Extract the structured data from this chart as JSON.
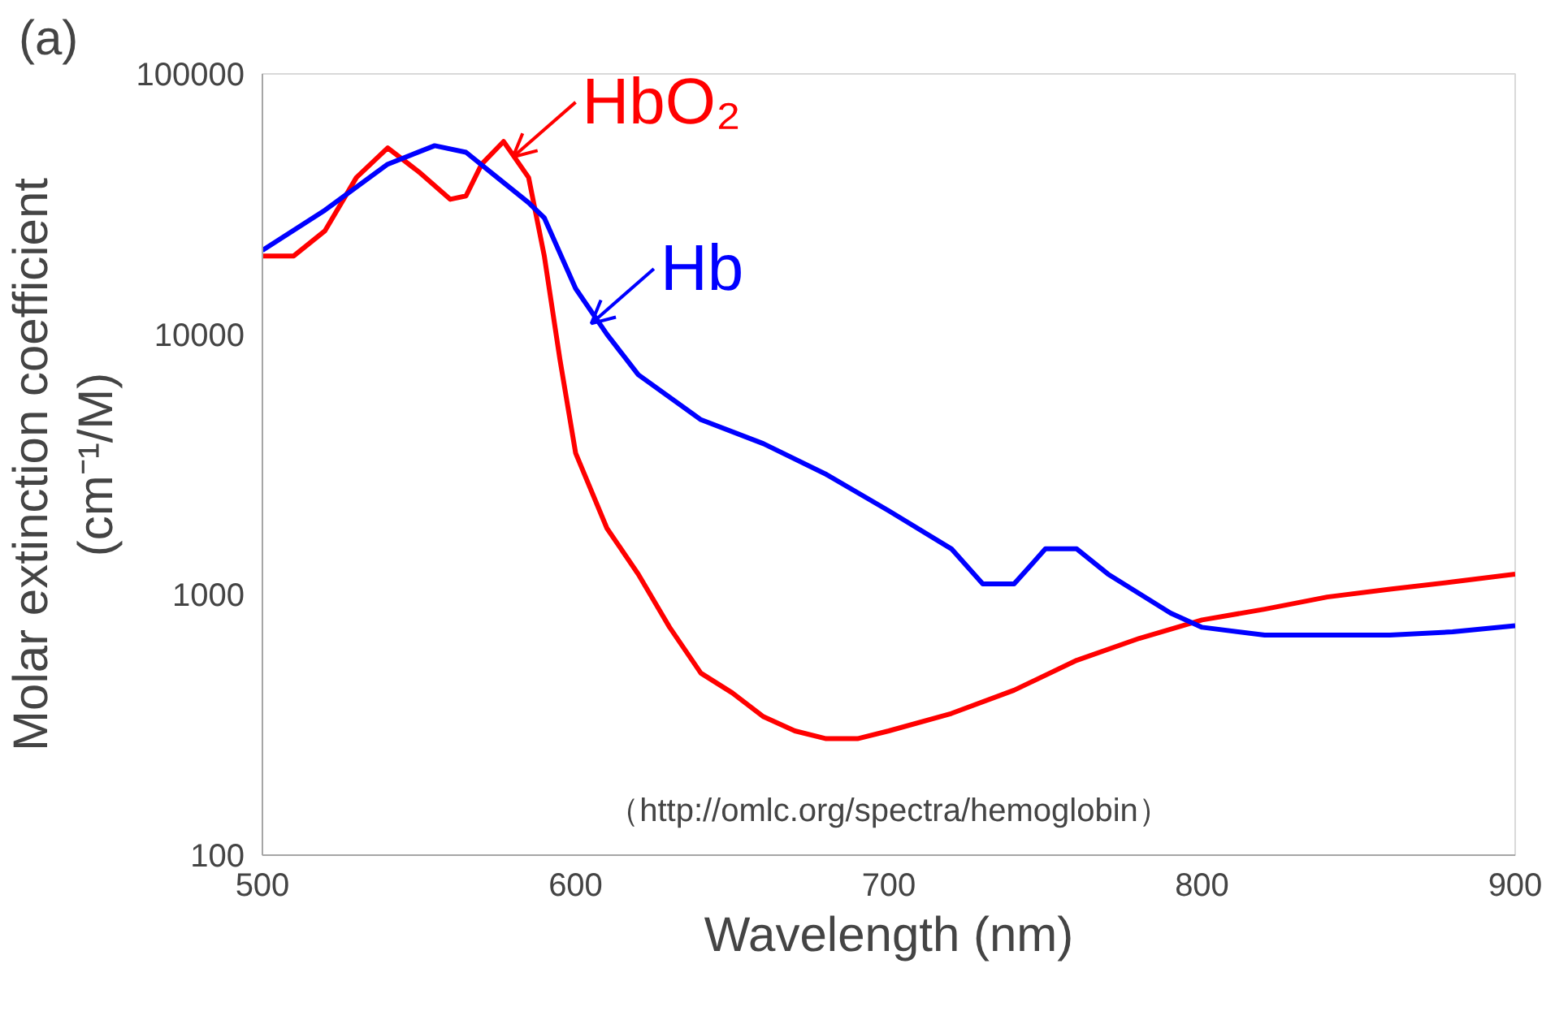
{
  "chart_data": {
    "type": "line",
    "title": "(a)",
    "xlabel": "Wavelength (nm)",
    "ylabel": "Molar extinction coefficient\n(cm⁻¹/M)",
    "log": "y",
    "xlim": [
      500,
      900
    ],
    "ylim": [
      100,
      100000
    ],
    "xticks": [
      500,
      600,
      700,
      800,
      900
    ],
    "yticks": [
      100,
      1000,
      10000,
      100000
    ],
    "grid": false,
    "marker": "none",
    "line_style": "solid",
    "series": [
      {
        "color": "#ff0000",
        "x": [
          500,
          510,
          520,
          530,
          540,
          550,
          560,
          565,
          570,
          577,
          585,
          590,
          595,
          600,
          610,
          620,
          630,
          640,
          650,
          660,
          670,
          680,
          690,
          700,
          720,
          740,
          760,
          780,
          800,
          820,
          840,
          860,
          880,
          900
        ],
        "values": [
          20000,
          20000,
          25000,
          40000,
          52000,
          42000,
          33000,
          34000,
          45000,
          55000,
          40000,
          20000,
          8000,
          3500,
          1800,
          1200,
          750,
          500,
          420,
          340,
          300,
          280,
          280,
          300,
          350,
          430,
          560,
          680,
          800,
          880,
          980,
          1050,
          1120,
          1200
        ]
      },
      {
        "color": "#0000ff",
        "x": [
          500,
          520,
          540,
          555,
          565,
          575,
          585,
          590,
          600,
          610,
          620,
          640,
          660,
          680,
          700,
          720,
          730,
          740,
          750,
          760,
          770,
          790,
          800,
          820,
          860,
          880,
          900
        ],
        "values": [
          21000,
          30000,
          45000,
          53000,
          50000,
          40000,
          32000,
          28000,
          15000,
          10000,
          7000,
          4700,
          3800,
          2900,
          2100,
          1500,
          1100,
          1100,
          1500,
          1500,
          1200,
          850,
          750,
          700,
          700,
          720,
          760
        ]
      }
    ],
    "annotations": [
      {
        "text": "HbO₂",
        "x": 580,
        "y": 48000
      },
      {
        "text": "Hb",
        "x": 605,
        "y": 11000
      },
      "（http://omlc.org/spectra/hemoglobin）"
    ]
  }
}
